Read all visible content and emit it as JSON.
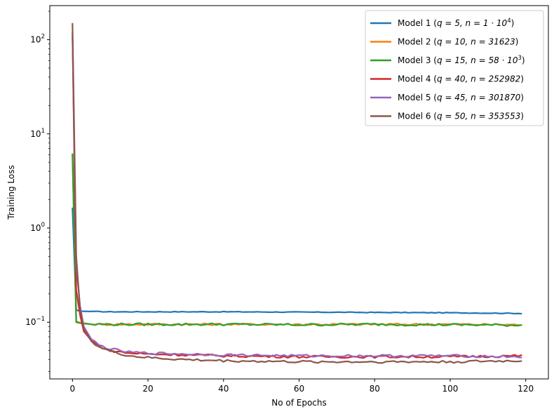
{
  "chart_data": {
    "type": "line",
    "title": "",
    "xlabel": "No of Epochs",
    "ylabel": "Training Loss",
    "yscale": "log",
    "xlim": [
      -6,
      126
    ],
    "ylim": [
      0.025,
      230
    ],
    "grid": false,
    "legend_position": "top-right",
    "x_ticks": [
      0,
      20,
      40,
      60,
      80,
      100,
      120
    ],
    "x_tick_labels": [
      "0",
      "20",
      "40",
      "60",
      "80",
      "100",
      "120"
    ],
    "y_ticks": [
      0.1,
      1,
      10,
      100
    ],
    "y_tick_labels": [
      {
        "base": "10",
        "exp": "−1"
      },
      {
        "base": "10",
        "exp": "0"
      },
      {
        "base": "10",
        "exp": "1"
      },
      {
        "base": "10",
        "exp": "2"
      }
    ],
    "epochs_count": 120,
    "series": [
      {
        "name": "Model 1",
        "legend": {
          "pre": "Model 1 (",
          "math": "q = 5, n = 1 · 10",
          "sup": "4",
          "post": ")"
        },
        "color": "#1f77b4",
        "x": [
          0,
          1,
          2,
          5,
          10,
          20,
          30,
          40,
          60,
          80,
          100,
          119
        ],
        "y": [
          1.65,
          0.135,
          0.131,
          0.13,
          0.129,
          0.129,
          0.129,
          0.129,
          0.128,
          0.127,
          0.126,
          0.124
        ],
        "noise": 0.008
      },
      {
        "name": "Model 2",
        "legend": {
          "pre": "Model 2 (",
          "math": "q = 10, n = 31623",
          "sup": "",
          "post": ")"
        },
        "color": "#ff7f0e",
        "x": [
          0,
          1,
          2,
          5,
          10,
          20,
          30,
          40,
          60,
          80,
          100,
          119
        ],
        "y": [
          6.0,
          0.102,
          0.099,
          0.095,
          0.095,
          0.095,
          0.095,
          0.095,
          0.095,
          0.095,
          0.095,
          0.094
        ],
        "noise": 0.025
      },
      {
        "name": "Model 3",
        "legend": {
          "pre": "Model 3 (",
          "math": "q = 15, n = 58 · 10",
          "sup": "3",
          "post": ")"
        },
        "color": "#2ca02c",
        "x": [
          0,
          1,
          2,
          5,
          10,
          20,
          30,
          40,
          60,
          80,
          100,
          119
        ],
        "y": [
          6.2,
          0.1,
          0.098,
          0.095,
          0.095,
          0.095,
          0.095,
          0.095,
          0.094,
          0.095,
          0.094,
          0.093
        ],
        "noise": 0.03
      },
      {
        "name": "Model 4",
        "legend": {
          "pre": "Model 4 (",
          "math": "q = 40, n = 252982",
          "sup": "",
          "post": ")"
        },
        "color": "#d62728",
        "x": [
          0,
          1,
          2,
          3,
          5,
          7,
          10,
          15,
          20,
          30,
          40,
          60,
          80,
          100,
          119
        ],
        "y": [
          120,
          0.22,
          0.12,
          0.08,
          0.064,
          0.056,
          0.05,
          0.047,
          0.046,
          0.045,
          0.044,
          0.043,
          0.043,
          0.043,
          0.044
        ],
        "noise": 0.03
      },
      {
        "name": "Model 5",
        "legend": {
          "pre": "Model 5 (",
          "math": "q = 45, n = 301870",
          "sup": "",
          "post": ")"
        },
        "color": "#9467bd",
        "x": [
          0,
          1,
          2,
          3,
          5,
          7,
          10,
          15,
          20,
          30,
          40,
          60,
          80,
          100,
          119
        ],
        "y": [
          110,
          0.4,
          0.15,
          0.09,
          0.066,
          0.057,
          0.052,
          0.048,
          0.047,
          0.046,
          0.045,
          0.044,
          0.044,
          0.044,
          0.043
        ],
        "noise": 0.03
      },
      {
        "name": "Model 6",
        "legend": {
          "pre": "Model 6 (",
          "math": "q = 50, n = 353553",
          "sup": "",
          "post": ")"
        },
        "color": "#8c564b",
        "x": [
          0,
          1,
          2,
          3,
          5,
          7,
          10,
          15,
          20,
          30,
          40,
          60,
          80,
          100,
          119
        ],
        "y": [
          150,
          0.5,
          0.14,
          0.085,
          0.063,
          0.055,
          0.049,
          0.044,
          0.042,
          0.04,
          0.039,
          0.038,
          0.038,
          0.038,
          0.039
        ],
        "noise": 0.03
      }
    ]
  }
}
